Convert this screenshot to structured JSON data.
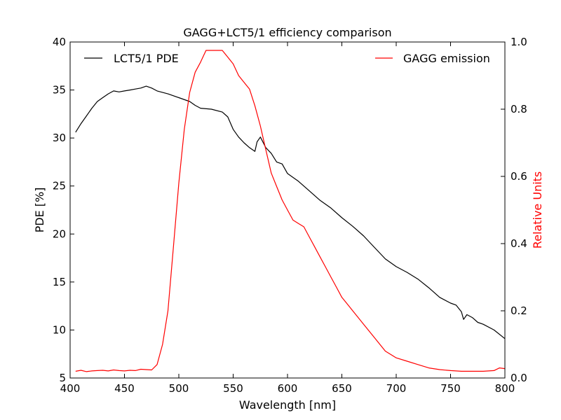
{
  "chart_data": {
    "type": "line",
    "title": "GAGG+LCT5/1 efficiency comparison",
    "xlabel": "Wavelength [nm]",
    "ylabel": "PDE [%]",
    "y2label": "Relative Units",
    "xlim": [
      400,
      800
    ],
    "ylim": [
      5,
      40
    ],
    "y2lim": [
      0.0,
      1.0
    ],
    "xticks": [
      "400",
      "450",
      "500",
      "550",
      "600",
      "650",
      "700",
      "750",
      "800"
    ],
    "yticks": [
      "5",
      "10",
      "15",
      "20",
      "25",
      "30",
      "35",
      "40"
    ],
    "y2ticks": [
      "0.0",
      "0.2",
      "0.4",
      "0.6",
      "0.8",
      "1.0"
    ],
    "grid": false,
    "colors": {
      "pde": "#000000",
      "emission": "#ff0000"
    },
    "series": [
      {
        "name": "LCT5/1 PDE",
        "axis": "left",
        "legend_position": "top-left",
        "x": [
          405,
          410,
          415,
          420,
          425,
          430,
          435,
          440,
          445,
          450,
          455,
          460,
          465,
          470,
          475,
          480,
          490,
          500,
          510,
          515,
          520,
          530,
          540,
          545,
          550,
          555,
          560,
          565,
          570,
          572,
          575,
          580,
          585,
          590,
          595,
          600,
          610,
          620,
          630,
          640,
          650,
          660,
          670,
          680,
          690,
          700,
          710,
          720,
          730,
          740,
          750,
          755,
          760,
          762,
          765,
          770,
          775,
          780,
          790,
          800
        ],
        "y": [
          30.6,
          31.5,
          32.3,
          33.1,
          33.8,
          34.2,
          34.6,
          34.9,
          34.8,
          34.9,
          35.0,
          35.1,
          35.2,
          35.4,
          35.2,
          34.9,
          34.6,
          34.2,
          33.8,
          33.4,
          33.1,
          33.0,
          32.7,
          32.2,
          30.9,
          30.1,
          29.5,
          29.0,
          28.6,
          29.6,
          30.1,
          29.0,
          28.4,
          27.5,
          27.3,
          26.3,
          25.5,
          24.5,
          23.5,
          22.7,
          21.7,
          20.8,
          19.8,
          18.6,
          17.4,
          16.6,
          16.0,
          15.3,
          14.4,
          13.4,
          12.8,
          12.6,
          11.9,
          11.1,
          11.6,
          11.3,
          10.8,
          10.6,
          10.0,
          9.1
        ]
      },
      {
        "name": "GAGG emission",
        "axis": "right",
        "legend_position": "top-right",
        "x": [
          405,
          410,
          415,
          420,
          425,
          430,
          435,
          440,
          445,
          450,
          455,
          460,
          465,
          470,
          475,
          480,
          485,
          490,
          495,
          500,
          505,
          510,
          515,
          520,
          525,
          530,
          535,
          540,
          545,
          550,
          555,
          560,
          565,
          570,
          575,
          580,
          585,
          590,
          595,
          600,
          605,
          610,
          615,
          620,
          625,
          630,
          635,
          640,
          645,
          650,
          655,
          660,
          670,
          680,
          690,
          700,
          710,
          720,
          730,
          740,
          750,
          760,
          770,
          780,
          790,
          795,
          800
        ],
        "y": [
          0.02,
          0.023,
          0.019,
          0.021,
          0.022,
          0.023,
          0.021,
          0.024,
          0.022,
          0.021,
          0.023,
          0.022,
          0.026,
          0.025,
          0.024,
          0.04,
          0.1,
          0.2,
          0.39,
          0.58,
          0.74,
          0.85,
          0.91,
          0.94,
          0.975,
          0.975,
          0.975,
          0.975,
          0.955,
          0.935,
          0.9,
          0.88,
          0.86,
          0.81,
          0.75,
          0.68,
          0.61,
          0.57,
          0.53,
          0.5,
          0.47,
          0.46,
          0.45,
          0.42,
          0.39,
          0.36,
          0.33,
          0.3,
          0.27,
          0.24,
          0.22,
          0.2,
          0.16,
          0.12,
          0.08,
          0.06,
          0.05,
          0.04,
          0.03,
          0.025,
          0.022,
          0.02,
          0.02,
          0.02,
          0.022,
          0.03,
          0.028
        ]
      }
    ]
  }
}
